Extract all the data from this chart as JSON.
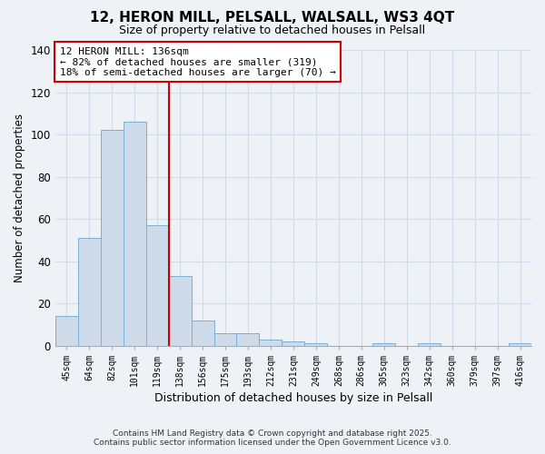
{
  "title": "12, HERON MILL, PELSALL, WALSALL, WS3 4QT",
  "subtitle": "Size of property relative to detached houses in Pelsall",
  "xlabel": "Distribution of detached houses by size in Pelsall",
  "ylabel": "Number of detached properties",
  "bar_labels": [
    "45sqm",
    "64sqm",
    "82sqm",
    "101sqm",
    "119sqm",
    "138sqm",
    "156sqm",
    "175sqm",
    "193sqm",
    "212sqm",
    "231sqm",
    "249sqm",
    "268sqm",
    "286sqm",
    "305sqm",
    "323sqm",
    "342sqm",
    "360sqm",
    "379sqm",
    "397sqm",
    "416sqm"
  ],
  "bar_heights": [
    14,
    51,
    102,
    106,
    57,
    33,
    12,
    6,
    6,
    3,
    2,
    1,
    0,
    0,
    1,
    0,
    1,
    0,
    0,
    0,
    1
  ],
  "bar_color": "#ccdaea",
  "bar_edge_color": "#7ab0d4",
  "vline_color": "#cc0000",
  "annotation_title": "12 HERON MILL: 136sqm",
  "annotation_line1": "← 82% of detached houses are smaller (319)",
  "annotation_line2": "18% of semi-detached houses are larger (70) →",
  "annotation_box_color": "#ffffff",
  "annotation_box_edge_color": "#cc0000",
  "ylim": [
    0,
    140
  ],
  "yticks": [
    0,
    20,
    40,
    60,
    80,
    100,
    120,
    140
  ],
  "grid_color": "#d0dce8",
  "background_color": "#eef2f7",
  "footnote1": "Contains HM Land Registry data © Crown copyright and database right 2025.",
  "footnote2": "Contains public sector information licensed under the Open Government Licence v3.0."
}
